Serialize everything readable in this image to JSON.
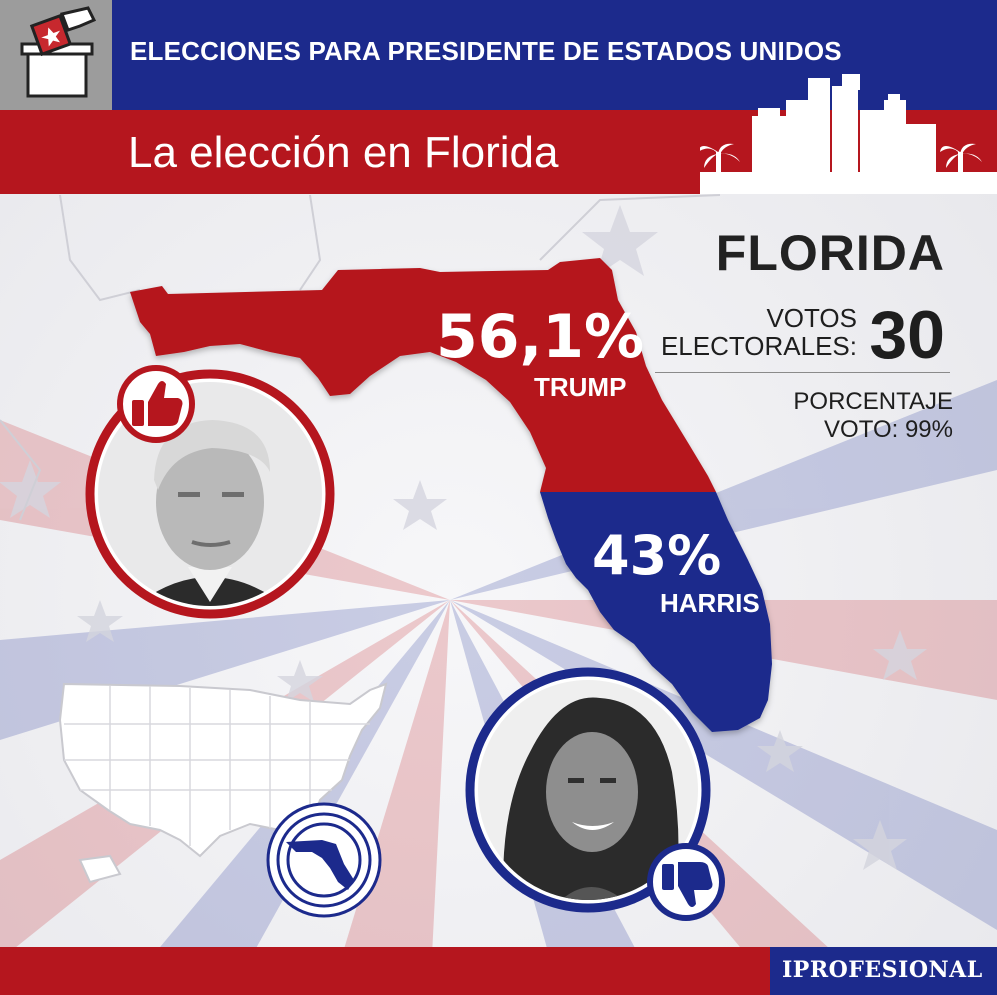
{
  "header": {
    "title": "ELECCIONES PARA PRESIDENTE DE ESTADOS UNIDOS"
  },
  "subtitle": "La elección en Florida",
  "state": {
    "name": "FLORIDA",
    "electoral_votes_label": "VOTOS\nELECTORALES:",
    "electoral_votes": "30",
    "vote_percentage_label": "PORCENTAJE\nVOTO: 99%"
  },
  "trump": {
    "percent": "56,1%",
    "name": "TRUMP",
    "percent_value": 56.1
  },
  "harris": {
    "percent": "43%",
    "name": "HARRIS",
    "percent_value": 43
  },
  "footer": {
    "brand": "IPROFESIONAL"
  },
  "colors": {
    "red": "#b5161e",
    "blue": "#1c2a8c",
    "gray": "#9c9c9c"
  },
  "icons": {
    "ballot": "ballot-box-icon",
    "thumbs_up": "thumbs-up-icon",
    "thumbs_down": "thumbs-down-icon",
    "usa_map": "usa-map-icon",
    "florida_badge": "florida-target-icon"
  }
}
